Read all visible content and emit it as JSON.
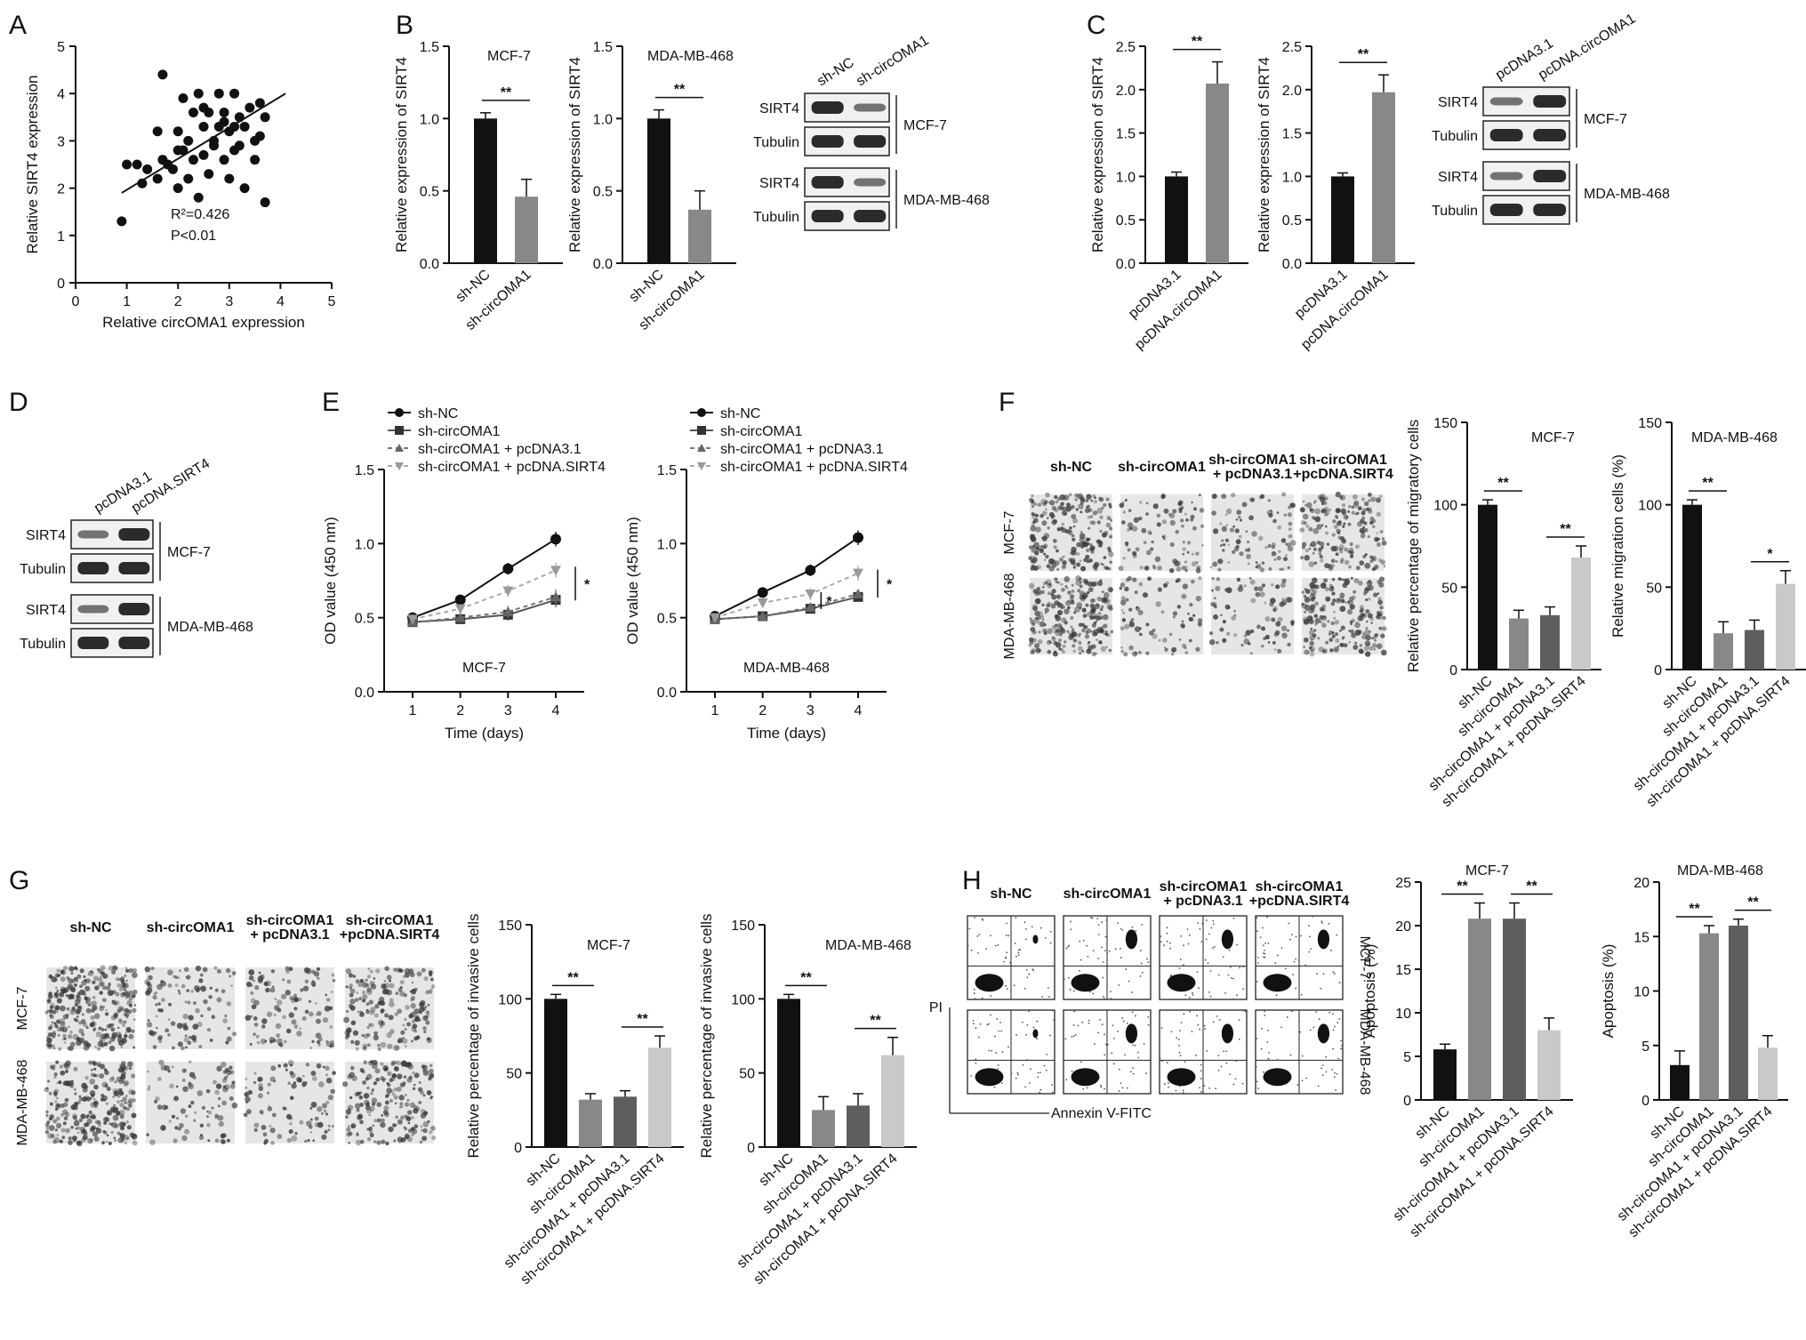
{
  "panel_labels": [
    "A",
    "B",
    "C",
    "D",
    "E",
    "F",
    "G",
    "H"
  ],
  "colors": {
    "black": "#111111",
    "gray_mid": "#888888",
    "gray_dark": "#5e5e5e",
    "gray_light": "#c9c9c9",
    "band": "#202020"
  },
  "chart_data": [
    {
      "panel": "A",
      "type": "scatter",
      "xlabel": "Relative circOMA1 expression",
      "ylabel": "Relative SIRT4 expression",
      "xlim": [
        0,
        5
      ],
      "ylim": [
        0,
        5
      ],
      "xticks": [
        "0",
        "1",
        "2",
        "3",
        "4",
        "5"
      ],
      "yticks": [
        "0",
        "1",
        "2",
        "3",
        "4",
        "5"
      ],
      "annotation_r2": "R²=0.426",
      "annotation_p": "P<0.01",
      "fit_line": {
        "x": [
          0.9,
          4.1
        ],
        "y": [
          1.9,
          4.0
        ]
      },
      "points": [
        [
          0.9,
          1.3
        ],
        [
          1.0,
          2.5
        ],
        [
          1.2,
          2.5
        ],
        [
          1.3,
          2.1
        ],
        [
          1.4,
          2.4
        ],
        [
          1.6,
          2.2
        ],
        [
          1.7,
          2.6
        ],
        [
          1.7,
          4.4
        ],
        [
          1.8,
          2.5
        ],
        [
          1.9,
          2.4
        ],
        [
          2.0,
          3.2
        ],
        [
          2.0,
          2.0
        ],
        [
          2.1,
          2.8
        ],
        [
          2.1,
          3.9
        ],
        [
          2.2,
          2.2
        ],
        [
          2.2,
          3.0
        ],
        [
          2.3,
          3.6
        ],
        [
          2.3,
          2.6
        ],
        [
          2.4,
          4.0
        ],
        [
          2.4,
          1.8
        ],
        [
          2.5,
          3.3
        ],
        [
          2.5,
          2.7
        ],
        [
          2.6,
          3.6
        ],
        [
          2.6,
          2.3
        ],
        [
          2.7,
          3.0
        ],
        [
          2.7,
          2.9
        ],
        [
          2.8,
          4.0
        ],
        [
          2.8,
          3.3
        ],
        [
          2.9,
          2.6
        ],
        [
          2.9,
          3.6
        ],
        [
          3.0,
          3.2
        ],
        [
          3.0,
          2.2
        ],
        [
          3.1,
          4.0
        ],
        [
          3.1,
          2.8
        ],
        [
          3.2,
          3.5
        ],
        [
          3.2,
          2.9
        ],
        [
          3.3,
          3.3
        ],
        [
          3.3,
          2.0
        ],
        [
          3.4,
          3.7
        ],
        [
          3.5,
          2.6
        ],
        [
          3.5,
          3.0
        ],
        [
          3.6,
          3.1
        ],
        [
          3.6,
          3.8
        ],
        [
          3.7,
          3.5
        ],
        [
          3.7,
          1.7
        ],
        [
          3.1,
          3.3
        ],
        [
          2.5,
          3.7
        ],
        [
          2.0,
          2.8
        ],
        [
          1.6,
          3.2
        ],
        [
          2.9,
          3.4
        ]
      ]
    },
    {
      "panel": "B",
      "type": "bar",
      "title": "MCF-7",
      "ylabel": "Relative expression of SIRT4",
      "ylim": [
        0,
        1.5
      ],
      "yticks": [
        "0.0",
        "0.5",
        "1.0",
        "1.5"
      ],
      "categories": [
        "sh-NC",
        "sh-circOMA1"
      ],
      "values": [
        1.0,
        0.46
      ],
      "errors": [
        0.04,
        0.12
      ],
      "sig": [
        {
          "from": 0,
          "to": 1,
          "label": "**"
        }
      ]
    },
    {
      "panel": "B2",
      "type": "bar",
      "title": "MDA-MB-468",
      "ylabel": "Relative expression of SIRT4",
      "ylim": [
        0,
        1.5
      ],
      "yticks": [
        "0.0",
        "0.5",
        "1.0",
        "1.5"
      ],
      "categories": [
        "sh-NC",
        "sh-circOMA1"
      ],
      "values": [
        1.0,
        0.37
      ],
      "errors": [
        0.06,
        0.13
      ],
      "sig": [
        {
          "from": 0,
          "to": 1,
          "label": "**"
        }
      ]
    },
    {
      "panel": "C",
      "type": "bar",
      "ylabel": "Relative expression of SIRT4",
      "ylim": [
        0,
        2.5
      ],
      "yticks": [
        "0.0",
        "0.5",
        "1.0",
        "1.5",
        "2.0",
        "2.5"
      ],
      "categories": [
        "pcDNA3.1",
        "pcDNA.circOMA1"
      ],
      "values": [
        1.0,
        2.07
      ],
      "errors": [
        0.05,
        0.25
      ],
      "sig": [
        {
          "from": 0,
          "to": 1,
          "label": "**"
        }
      ]
    },
    {
      "panel": "C2",
      "type": "bar",
      "ylabel": "Relative expression of SIRT4",
      "ylim": [
        0,
        2.5
      ],
      "yticks": [
        "0.0",
        "0.5",
        "1.0",
        "1.5",
        "2.0",
        "2.5"
      ],
      "categories": [
        "pcDNA3.1",
        "pcDNA.circOMA1"
      ],
      "values": [
        1.0,
        1.97
      ],
      "errors": [
        0.04,
        0.2
      ],
      "sig": [
        {
          "from": 0,
          "to": 1,
          "label": "**"
        }
      ]
    },
    {
      "panel": "E",
      "type": "line",
      "title": "MCF-7",
      "xlabel": "Time (days)",
      "ylabel": "OD value (450 nm)",
      "x": [
        1,
        2,
        3,
        4
      ],
      "xticks": [
        "1",
        "2",
        "3",
        "4"
      ],
      "ylim": [
        0,
        1.5
      ],
      "yticks": [
        "0.0",
        "0.5",
        "1.0",
        "1.5"
      ],
      "series": [
        {
          "name": "sh-NC",
          "values": [
            0.5,
            0.62,
            0.83,
            1.03
          ],
          "errors": [
            0.03,
            0.03,
            0.04,
            0.05
          ]
        },
        {
          "name": "sh-circOMA1",
          "values": [
            0.47,
            0.49,
            0.52,
            0.62
          ],
          "errors": [
            0.03,
            0.03,
            0.04,
            0.05
          ]
        },
        {
          "name": "sh-circOMA1 + pcDNA3.1",
          "values": [
            0.47,
            0.5,
            0.54,
            0.64
          ],
          "errors": [
            0.03,
            0.03,
            0.04,
            0.05
          ]
        },
        {
          "name": "sh-circOMA1 + pcDNA.SIRT4",
          "values": [
            0.49,
            0.56,
            0.68,
            0.82
          ],
          "errors": [
            0.03,
            0.03,
            0.04,
            0.05
          ]
        }
      ],
      "sig_label": "*"
    },
    {
      "panel": "E2",
      "type": "line",
      "title": "MDA-MB-468",
      "xlabel": "Time (days)",
      "ylabel": "OD value (450 nm)",
      "x": [
        1,
        2,
        3,
        4
      ],
      "xticks": [
        "1",
        "2",
        "3",
        "4"
      ],
      "ylim": [
        0,
        1.5
      ],
      "yticks": [
        "0.0",
        "0.5",
        "1.0",
        "1.5"
      ],
      "series": [
        {
          "name": "sh-NC",
          "values": [
            0.51,
            0.67,
            0.82,
            1.04
          ],
          "errors": [
            0.03,
            0.03,
            0.04,
            0.05
          ]
        },
        {
          "name": "sh-circOMA1",
          "values": [
            0.49,
            0.51,
            0.56,
            0.64
          ],
          "errors": [
            0.03,
            0.03,
            0.03,
            0.03
          ]
        },
        {
          "name": "sh-circOMA1 + pcDNA3.1",
          "values": [
            0.49,
            0.51,
            0.57,
            0.66
          ],
          "errors": [
            0.03,
            0.03,
            0.03,
            0.03
          ]
        },
        {
          "name": "sh-circOMA1 + pcDNA.SIRT4",
          "values": [
            0.5,
            0.6,
            0.66,
            0.8
          ],
          "errors": [
            0.03,
            0.03,
            0.04,
            0.05
          ]
        }
      ],
      "sig_label": "*",
      "sig_label2": "*"
    },
    {
      "panel": "F",
      "type": "bar",
      "title": "MCF-7",
      "ylabel": "Relative percentage of migratory cells",
      "ylim": [
        0,
        150
      ],
      "yticks": [
        "0",
        "50",
        "100",
        "150"
      ],
      "categories": [
        "sh-NC",
        "sh-circOMA1",
        "sh-circOMA1 + pcDNA3.1",
        "sh-circOMA1 + pcDNA.SIRT4"
      ],
      "values": [
        100,
        31,
        33,
        68
      ],
      "errors": [
        3,
        5,
        5,
        7
      ],
      "sig": [
        {
          "from": 0,
          "to": 1,
          "label": "**"
        },
        {
          "from": 2,
          "to": 3,
          "label": "**"
        }
      ]
    },
    {
      "panel": "F2",
      "type": "bar",
      "title": "MDA-MB-468",
      "ylabel": "Relative migration cells (%)",
      "ylim": [
        0,
        150
      ],
      "yticks": [
        "0",
        "50",
        "100",
        "150"
      ],
      "categories": [
        "sh-NC",
        "sh-circOMA1",
        "sh-circOMA1 + pcDNA3.1",
        "sh-circOMA1 + pcDNA.SIRT4"
      ],
      "values": [
        100,
        22,
        24,
        52
      ],
      "errors": [
        3,
        7,
        6,
        8
      ],
      "sig": [
        {
          "from": 0,
          "to": 1,
          "label": "**"
        },
        {
          "from": 2,
          "to": 3,
          "label": "*"
        }
      ]
    },
    {
      "panel": "G",
      "type": "bar",
      "title": "MCF-7",
      "ylabel": "Relative percentage of invasive cells",
      "ylim": [
        0,
        150
      ],
      "yticks": [
        "0",
        "50",
        "100",
        "150"
      ],
      "categories": [
        "sh-NC",
        "sh-circOMA1",
        "sh-circOMA1 + pcDNA3.1",
        "sh-circOMA1 + pcDNA.SIRT4"
      ],
      "values": [
        100,
        32,
        34,
        67
      ],
      "errors": [
        3,
        4,
        4,
        8
      ],
      "sig": [
        {
          "from": 0,
          "to": 1,
          "label": "**"
        },
        {
          "from": 2,
          "to": 3,
          "label": "**"
        }
      ]
    },
    {
      "panel": "G2",
      "type": "bar",
      "title": "MDA-MB-468",
      "ylabel": "Relative percentage of invasive cells",
      "ylim": [
        0,
        150
      ],
      "yticks": [
        "0",
        "50",
        "100",
        "150"
      ],
      "categories": [
        "sh-NC",
        "sh-circOMA1",
        "sh-circOMA1 + pcDNA3.1",
        "sh-circOMA1 + pcDNA.SIRT4"
      ],
      "values": [
        100,
        25,
        28,
        62
      ],
      "errors": [
        3,
        9,
        8,
        12
      ],
      "sig": [
        {
          "from": 0,
          "to": 1,
          "label": "**"
        },
        {
          "from": 2,
          "to": 3,
          "label": "**"
        }
      ]
    },
    {
      "panel": "H",
      "type": "bar",
      "title": "MCF-7",
      "ylabel": "Apoptosis (%)",
      "ylim": [
        0,
        25
      ],
      "yticks": [
        "0",
        "5",
        "10",
        "15",
        "20",
        "25"
      ],
      "categories": [
        "sh-NC",
        "sh-circOMA1",
        "sh-circOMA1 + pcDNA3.1",
        "sh-circOMA1 + pcDNA.SIRT4"
      ],
      "values": [
        5.8,
        20.8,
        20.8,
        8.0
      ],
      "errors": [
        0.6,
        1.8,
        1.8,
        1.4
      ],
      "sig": [
        {
          "from": 0,
          "to": 1,
          "label": "**"
        },
        {
          "from": 2,
          "to": 3,
          "label": "**"
        }
      ]
    },
    {
      "panel": "H2",
      "type": "bar",
      "title": "MDA-MB-468",
      "ylabel": "Apoptosis (%)",
      "ylim": [
        0,
        20
      ],
      "yticks": [
        "0",
        "5",
        "10",
        "15",
        "20"
      ],
      "categories": [
        "sh-NC",
        "sh-circOMA1",
        "sh-circOMA1 + pcDNA3.1",
        "sh-circOMA1 + pcDNA.SIRT4"
      ],
      "values": [
        3.2,
        15.3,
        16.0,
        4.8
      ],
      "errors": [
        1.3,
        0.7,
        0.6,
        1.1
      ],
      "sig": [
        {
          "from": 0,
          "to": 1,
          "label": "**"
        },
        {
          "from": 2,
          "to": 3,
          "label": "**"
        }
      ]
    }
  ],
  "blots": {
    "B": {
      "lanes": [
        "sh-NC",
        "sh-circOMA1"
      ],
      "rows": [
        "SIRT4",
        "Tubulin",
        "SIRT4",
        "Tubulin"
      ],
      "groups": [
        "MCF-7",
        "MDA-MB-468"
      ]
    },
    "C": {
      "lanes": [
        "pcDNA3.1",
        "pcDNA.circOMA1"
      ],
      "rows": [
        "SIRT4",
        "Tubulin",
        "SIRT4",
        "Tubulin"
      ],
      "groups": [
        "MCF-7",
        "MDA-MB-468"
      ]
    },
    "D": {
      "lanes": [
        "pcDNA3.1",
        "pcDNA.SIRT4"
      ],
      "rows": [
        "SIRT4",
        "Tubulin",
        "SIRT4",
        "Tubulin"
      ],
      "groups": [
        "MCF-7",
        "MDA-MB-468"
      ]
    }
  },
  "micro": {
    "columns": [
      "sh-NC",
      "sh-circOMA1",
      "sh-circOMA1",
      "+ pcDNA3.1",
      "sh-circOMA1",
      "+pcDNA.SIRT4"
    ],
    "rows": [
      "MCF-7",
      "MDA-MB-468"
    ]
  },
  "flow": {
    "ylabel": "PI",
    "xlabel": "Annexin V-FITC",
    "rows": [
      "MCF-7",
      "MDA-MB-468"
    ]
  }
}
